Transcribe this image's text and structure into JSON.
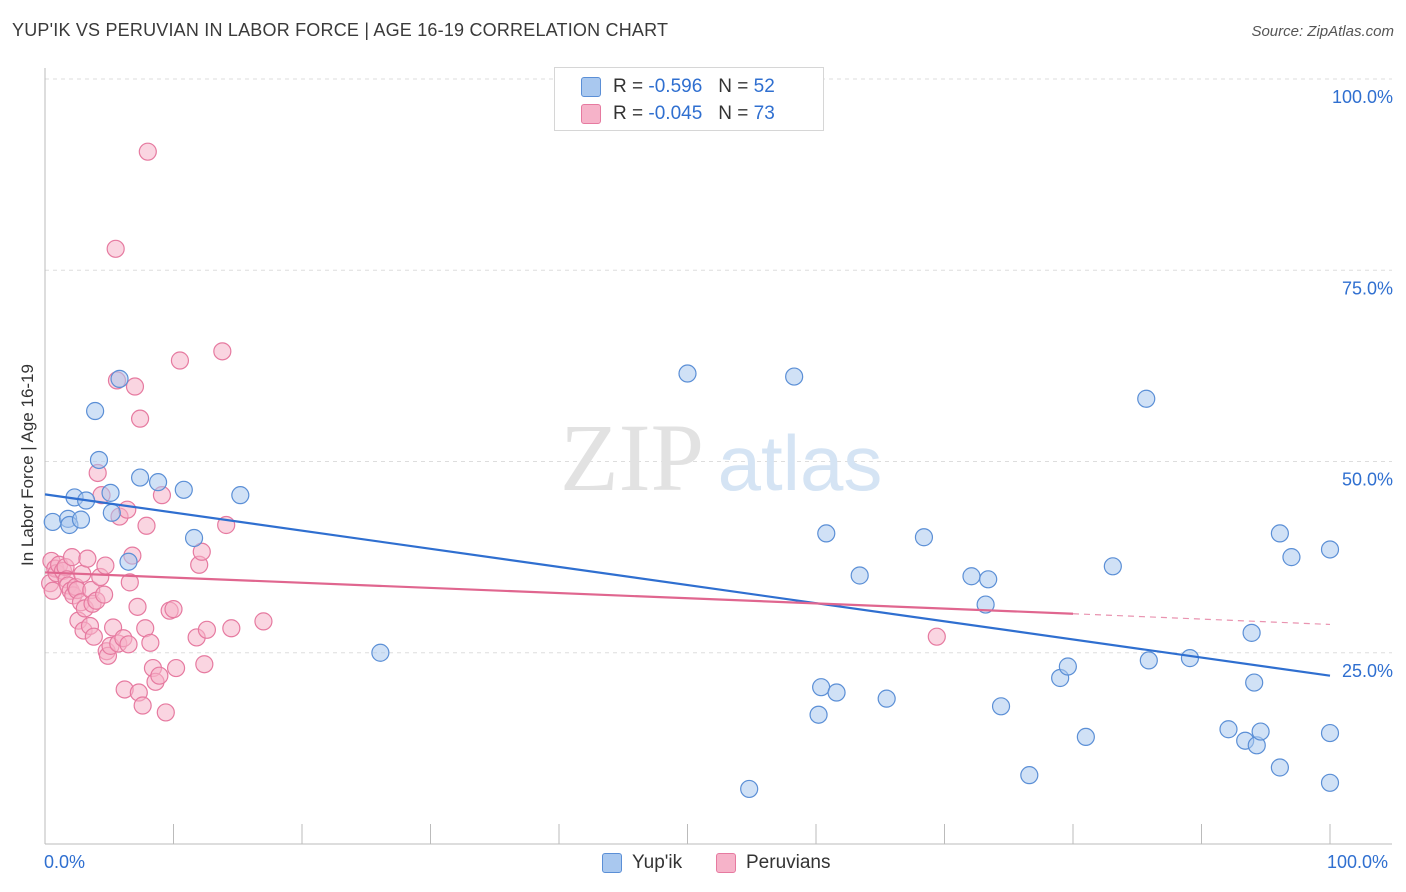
{
  "title": "YUP'IK VS PERUVIAN IN LABOR FORCE | AGE 16-19 CORRELATION CHART",
  "source": "Source: ZipAtlas.com",
  "watermark": {
    "zip": "ZIP",
    "atlas": "atlas"
  },
  "legend": {
    "rows": [
      {
        "r_label": "R =",
        "r_value": "-0.596",
        "n_label": "N =",
        "n_value": "52"
      },
      {
        "r_label": "R =",
        "r_value": "-0.045",
        "n_label": "N =",
        "n_value": "73"
      }
    ]
  },
  "bottom_legend": {
    "series1": "Yup'ik",
    "series2": "Peruvians"
  },
  "x_axis": {
    "min_label": "0.0%",
    "max_label": "100.0%"
  },
  "colors": {
    "blue_fill": "#a9c8ef",
    "blue_stroke": "#5b8fd6",
    "blue_line": "#2f6fd0",
    "pink_fill": "#f6b3c9",
    "pink_stroke": "#e67aa0",
    "pink_line": "#e0668f",
    "axis_text": "#2f6fd0",
    "grid": "#dddddd"
  },
  "chart_data": {
    "type": "scatter",
    "title": "YUP'IK VS PERUVIAN IN LABOR FORCE | AGE 16-19 CORRELATION CHART",
    "xlabel": "",
    "ylabel": "In Labor Force | Age 16-19",
    "xlim": [
      0,
      100
    ],
    "ylim": [
      0,
      100
    ],
    "y_ticks": [
      {
        "value": 25,
        "label": "25.0%"
      },
      {
        "value": 50,
        "label": "50.0%"
      },
      {
        "value": 75,
        "label": "75.0%"
      },
      {
        "value": 100,
        "label": "100.0%"
      }
    ],
    "x_tick_values": [
      0,
      10,
      20,
      30,
      40,
      50,
      60,
      70,
      80,
      90,
      100
    ],
    "series": [
      {
        "name": "Yup'ik",
        "color": "#5b8fd6",
        "trend": {
          "x": [
            0,
            100
          ],
          "y": [
            45.7,
            22.0
          ]
        },
        "points": [
          [
            0.6,
            42.1
          ],
          [
            1.8,
            42.5
          ],
          [
            1.9,
            41.7
          ],
          [
            2.3,
            45.3
          ],
          [
            2.8,
            42.4
          ],
          [
            3.2,
            44.9
          ],
          [
            3.9,
            56.6
          ],
          [
            4.2,
            50.2
          ],
          [
            5.1,
            45.9
          ],
          [
            5.2,
            43.3
          ],
          [
            5.8,
            60.8
          ],
          [
            6.5,
            36.9
          ],
          [
            7.4,
            47.9
          ],
          [
            8.8,
            47.3
          ],
          [
            10.8,
            46.3
          ],
          [
            11.6,
            40.0
          ],
          [
            15.2,
            45.6
          ],
          [
            26.1,
            25.0
          ],
          [
            50.0,
            61.5
          ],
          [
            54.8,
            7.2
          ],
          [
            58.3,
            61.1
          ],
          [
            60.2,
            16.9
          ],
          [
            60.4,
            20.5
          ],
          [
            60.8,
            40.6
          ],
          [
            61.6,
            19.8
          ],
          [
            63.4,
            35.1
          ],
          [
            65.5,
            19.0
          ],
          [
            68.4,
            40.1
          ],
          [
            72.1,
            35.0
          ],
          [
            73.2,
            31.3
          ],
          [
            73.4,
            34.6
          ],
          [
            74.4,
            18.0
          ],
          [
            76.6,
            9.0
          ],
          [
            79.0,
            21.7
          ],
          [
            79.6,
            23.2
          ],
          [
            81.0,
            14.0
          ],
          [
            83.1,
            36.3
          ],
          [
            85.7,
            58.2
          ],
          [
            85.9,
            24.0
          ],
          [
            89.1,
            24.3
          ],
          [
            92.1,
            15.0
          ],
          [
            93.4,
            13.5
          ],
          [
            93.9,
            27.6
          ],
          [
            94.1,
            21.1
          ],
          [
            94.3,
            12.9
          ],
          [
            94.6,
            14.7
          ],
          [
            96.1,
            40.6
          ],
          [
            96.1,
            10.0
          ],
          [
            97.0,
            37.5
          ],
          [
            100.0,
            38.5
          ],
          [
            100.0,
            14.5
          ],
          [
            100.0,
            8.0
          ]
        ]
      },
      {
        "name": "Peruvians",
        "color": "#e67aa0",
        "trend": {
          "x": [
            0,
            80
          ],
          "y": [
            35.5,
            30.1
          ]
        },
        "trend_dashed": {
          "x": [
            80,
            100
          ],
          "y": [
            30.1,
            28.7
          ]
        },
        "points": [
          [
            0.4,
            34.1
          ],
          [
            0.5,
            37.0
          ],
          [
            0.6,
            33.1
          ],
          [
            0.8,
            36.0
          ],
          [
            0.9,
            35.4
          ],
          [
            1.1,
            36.5
          ],
          [
            1.4,
            35.7
          ],
          [
            1.6,
            36.2
          ],
          [
            1.7,
            34.6
          ],
          [
            1.8,
            33.8
          ],
          [
            2.0,
            33.1
          ],
          [
            2.1,
            37.5
          ],
          [
            2.2,
            32.5
          ],
          [
            2.4,
            33.6
          ],
          [
            2.5,
            33.2
          ],
          [
            2.6,
            29.2
          ],
          [
            2.8,
            31.6
          ],
          [
            2.9,
            35.3
          ],
          [
            3.0,
            27.9
          ],
          [
            3.1,
            30.8
          ],
          [
            3.3,
            37.3
          ],
          [
            3.5,
            28.5
          ],
          [
            3.6,
            33.2
          ],
          [
            3.7,
            31.4
          ],
          [
            3.8,
            27.1
          ],
          [
            4.0,
            31.8
          ],
          [
            4.1,
            48.5
          ],
          [
            4.3,
            34.9
          ],
          [
            4.4,
            45.6
          ],
          [
            4.6,
            32.6
          ],
          [
            4.7,
            36.4
          ],
          [
            4.8,
            25.2
          ],
          [
            4.9,
            24.6
          ],
          [
            5.1,
            25.9
          ],
          [
            5.3,
            28.3
          ],
          [
            5.5,
            77.8
          ],
          [
            5.6,
            60.6
          ],
          [
            5.7,
            26.2
          ],
          [
            5.8,
            42.8
          ],
          [
            6.1,
            26.9
          ],
          [
            6.2,
            20.2
          ],
          [
            6.4,
            43.7
          ],
          [
            6.5,
            26.1
          ],
          [
            6.6,
            34.2
          ],
          [
            6.8,
            37.7
          ],
          [
            7.0,
            59.8
          ],
          [
            7.3,
            19.8
          ],
          [
            7.4,
            55.6
          ],
          [
            7.6,
            18.1
          ],
          [
            7.8,
            28.2
          ],
          [
            7.9,
            41.6
          ],
          [
            8.0,
            90.5
          ],
          [
            8.2,
            26.3
          ],
          [
            8.4,
            23.0
          ],
          [
            8.6,
            21.2
          ],
          [
            8.9,
            22.0
          ],
          [
            9.1,
            45.6
          ],
          [
            9.4,
            17.2
          ],
          [
            9.7,
            30.5
          ],
          [
            10.0,
            30.7
          ],
          [
            10.2,
            23.0
          ],
          [
            10.5,
            63.2
          ],
          [
            11.8,
            27.0
          ],
          [
            12.0,
            36.5
          ],
          [
            12.2,
            38.2
          ],
          [
            12.4,
            23.5
          ],
          [
            12.6,
            28.0
          ],
          [
            13.8,
            64.4
          ],
          [
            14.1,
            41.7
          ],
          [
            14.5,
            28.2
          ],
          [
            17.0,
            29.1
          ],
          [
            69.4,
            27.1
          ],
          [
            7.2,
            31.0
          ]
        ]
      }
    ]
  }
}
